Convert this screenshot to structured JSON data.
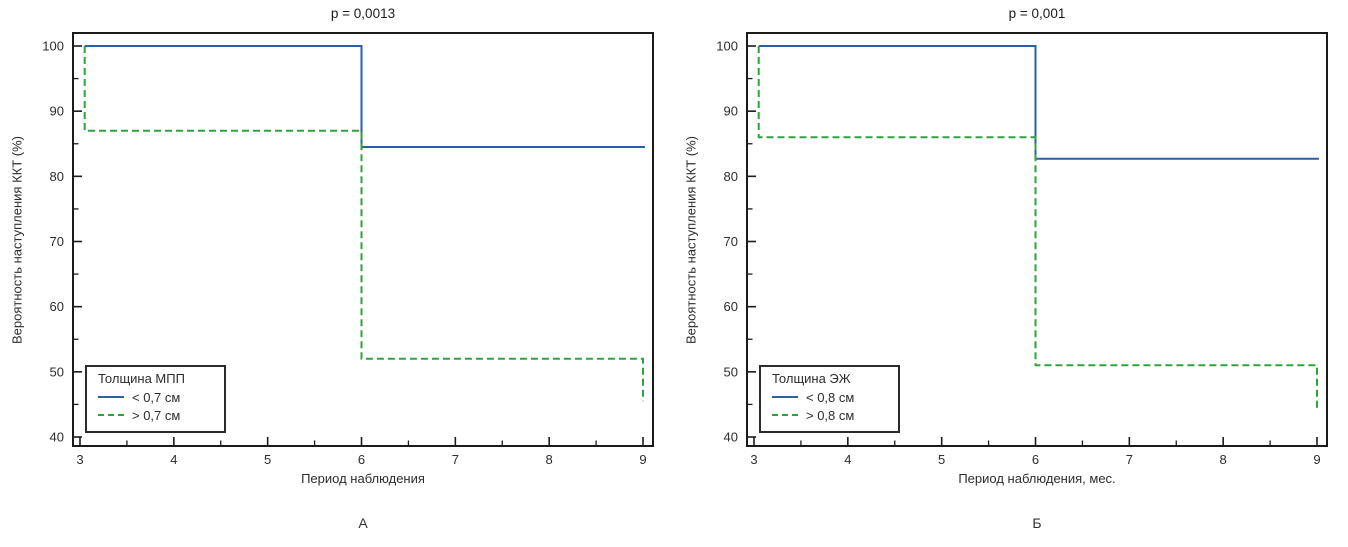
{
  "figure": {
    "background": "#ffffff",
    "frame_color": "#1b1b1b",
    "tick_label_color": "#2d2d2d"
  },
  "chart_data": [
    {
      "type": "line",
      "subtype": "kaplan-meier-step",
      "title": "p = 0,0013",
      "caption": "А",
      "xlabel": "Период наблюдения",
      "ylabel": "Вероятность наступления ККТ (%)",
      "xlim": [
        2.93,
        9.11
      ],
      "ylim": [
        38.6,
        102
      ],
      "x_ticks": [
        3,
        4,
        5,
        6,
        7,
        8,
        9
      ],
      "x_minor_ticks": [
        3.5,
        4.5,
        5.5,
        6.5,
        7.5,
        8.5
      ],
      "y_ticks": [
        40,
        50,
        60,
        70,
        80,
        90,
        100
      ],
      "y_minor_ticks": [
        45,
        55,
        65,
        75,
        85,
        95
      ],
      "grid": false,
      "legend": {
        "title": "Толщина МПП",
        "position": "bottom-left"
      },
      "series": [
        {
          "name": "< 0,7 см",
          "color": "#2A5FA8",
          "style": "solid",
          "points": [
            [
              3.05,
              100
            ],
            [
              6,
              100
            ],
            [
              6,
              84.5
            ],
            [
              9.02,
              84.5
            ]
          ]
        },
        {
          "name": "> 0,7 см",
          "color": "#2EA33C",
          "style": "dashed",
          "points": [
            [
              3.05,
              100
            ],
            [
              3.05,
              87
            ],
            [
              6,
              87
            ],
            [
              6,
              52
            ],
            [
              9,
              52
            ],
            [
              9,
              45.5
            ]
          ]
        }
      ]
    },
    {
      "type": "line",
      "subtype": "kaplan-meier-step",
      "title": "p = 0,001",
      "caption": "Б",
      "xlabel": "Период наблюдения, мес.",
      "ylabel": "Вероятность наступления ККТ (%)",
      "xlim": [
        2.93,
        9.11
      ],
      "ylim": [
        38.6,
        102
      ],
      "x_ticks": [
        3,
        4,
        5,
        6,
        7,
        8,
        9
      ],
      "x_minor_ticks": [
        3.5,
        4.5,
        5.5,
        6.5,
        7.5,
        8.5
      ],
      "y_ticks": [
        40,
        50,
        60,
        70,
        80,
        90,
        100
      ],
      "y_minor_ticks": [
        45,
        55,
        65,
        75,
        85,
        95
      ],
      "grid": false,
      "legend": {
        "title": "Толщина ЭЖ",
        "position": "bottom-left"
      },
      "series": [
        {
          "name": "< 0,8 см",
          "color": "#2A5FA8",
          "style": "solid",
          "points": [
            [
              3.05,
              100
            ],
            [
              6,
              100
            ],
            [
              6,
              82.7
            ],
            [
              9.02,
              82.7
            ]
          ]
        },
        {
          "name": "> 0,8 см",
          "color": "#2EA33C",
          "style": "dashed",
          "points": [
            [
              3.05,
              100
            ],
            [
              3.05,
              86
            ],
            [
              6,
              86
            ],
            [
              6,
              51
            ],
            [
              9,
              51
            ],
            [
              9,
              44.5
            ]
          ]
        }
      ]
    }
  ]
}
